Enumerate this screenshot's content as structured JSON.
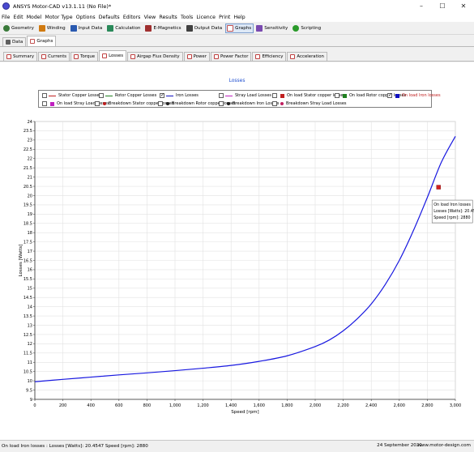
{
  "window": {
    "title": "ANSYS Motor-CAD v13.1.11 (No File)*"
  },
  "menu": [
    "File",
    "Edit",
    "Model",
    "Motor Type",
    "Options",
    "Defaults",
    "Editors",
    "View",
    "Results",
    "Tools",
    "Licence",
    "Print",
    "Help"
  ],
  "toolbar": [
    {
      "label": "Geometry",
      "color": "#3a7a3a"
    },
    {
      "label": "Winding",
      "color": "#d07a10"
    },
    {
      "label": "Input Data",
      "color": "#2a5ab0"
    },
    {
      "label": "Calculation",
      "color": "#2a8a5a"
    },
    {
      "label": "E-Magnetics",
      "color": "#a03030"
    },
    {
      "label": "Output Data",
      "color": "#404040"
    },
    {
      "label": "Graphs",
      "color": "#c05050"
    },
    {
      "label": "Sensitivity",
      "color": "#7a4ab0"
    },
    {
      "label": "Scripting",
      "color": "#2a9a2a"
    }
  ],
  "tabs_top": [
    "Data",
    "Graphs"
  ],
  "tabs_graph": [
    "Summary",
    "Currents",
    "Torque",
    "Losses",
    "Airgap Flux Density",
    "Power",
    "Power Factor",
    "Efficiency",
    "Acceleration"
  ],
  "legend": [
    {
      "label": "Stator Copper Losses",
      "checked": false,
      "marker": "line",
      "color": "#c02020"
    },
    {
      "label": "Rotor Copper Losses",
      "checked": false,
      "marker": "line",
      "color": "#208020"
    },
    {
      "label": "Iron Losses",
      "checked": true,
      "marker": "line",
      "color": "#1010c0"
    },
    {
      "label": "Stray Load Losses",
      "checked": false,
      "marker": "line",
      "color": "#c020c0"
    },
    {
      "label": "On load Stator copper losses",
      "checked": false,
      "marker": "square",
      "color": "#c02020"
    },
    {
      "label": "On load Rotor copper losses",
      "checked": false,
      "marker": "square",
      "color": "#208020"
    },
    {
      "label": "On load Iron losses",
      "checked": true,
      "marker": "square",
      "color": "#1010c0",
      "text_color": "#c02020"
    },
    {
      "label": "On load Stray Load losses",
      "checked": false,
      "marker": "square",
      "color": "#c020c0"
    },
    {
      "label": "Breakdown Stator copper losses",
      "checked": false,
      "marker": "dot",
      "color": "#c02020"
    },
    {
      "label": "Breakdown Rotor copper losses",
      "checked": false,
      "marker": "dot",
      "color": "#202020"
    },
    {
      "label": "Breakdown Iron Losses",
      "checked": false,
      "marker": "dot",
      "color": "#202020"
    },
    {
      "label": "Breakdown Stray Load Losses",
      "checked": false,
      "marker": "dot",
      "color": "#c02060"
    }
  ],
  "tooltip": [
    "On load Iron losses",
    "Losses [Watts]: 20.4547",
    "Speed [rpm]: 2880"
  ],
  "status": {
    "left": "On load Iron losses : Losses [Watts]: 20.4547  Speed [rpm]: 2880",
    "date": "24 September 2021",
    "website": "www.motor-design.com"
  },
  "chart_data": {
    "type": "line",
    "title": "Losses",
    "xlabel": "Speed [rpm]",
    "ylabel": "Losses [Watts]",
    "xlim": [
      0,
      3000
    ],
    "ylim": [
      9,
      24
    ],
    "xticks": [
      0,
      200,
      400,
      600,
      800,
      1000,
      1200,
      1400,
      1600,
      1800,
      2000,
      2200,
      2400,
      2600,
      2800,
      3000
    ],
    "xtick_labels": [
      "0",
      "200",
      "400",
      "600",
      "800",
      "1,000",
      "1,200",
      "1,400",
      "1,600",
      "1,800",
      "2,000",
      "2,200",
      "2,400",
      "2,600",
      "2,800",
      "3,000"
    ],
    "yticks": [
      9,
      9.5,
      10,
      10.5,
      11,
      11.5,
      12,
      12.5,
      13,
      13.5,
      14,
      14.5,
      15,
      15.5,
      16,
      16.5,
      17,
      17.5,
      18,
      18.5,
      19,
      19.5,
      20,
      20.5,
      21,
      21.5,
      22,
      22.5,
      23,
      23.5,
      24
    ],
    "ytick_labels": [
      "9",
      "9.5",
      "10",
      "10.5",
      "11",
      "11.5",
      "12",
      "12.5",
      "13",
      "13.5",
      "14",
      "14.5",
      "15",
      "15.5",
      "16",
      "16.5",
      "17",
      "17.5",
      "18",
      "18.5",
      "19",
      "19.5",
      "20",
      "20.5",
      "21",
      "21.5",
      "22",
      "22.5",
      "23",
      "23.5",
      "24"
    ],
    "grid": true,
    "series": [
      {
        "name": "Iron Losses",
        "color": "#1818e0",
        "x": [
          0,
          200,
          400,
          600,
          800,
          1000,
          1200,
          1400,
          1600,
          1800,
          2000,
          2100,
          2200,
          2300,
          2400,
          2500,
          2600,
          2700,
          2800,
          2900,
          3000
        ],
        "y": [
          9.95,
          10.08,
          10.2,
          10.32,
          10.43,
          10.55,
          10.68,
          10.83,
          11.05,
          11.35,
          11.85,
          12.2,
          12.7,
          13.35,
          14.15,
          15.2,
          16.5,
          18.1,
          19.9,
          21.8,
          23.2
        ]
      }
    ],
    "points": [
      {
        "name": "On load Iron losses",
        "x": 2880,
        "y": 20.4547,
        "color": "#d02020"
      }
    ]
  }
}
